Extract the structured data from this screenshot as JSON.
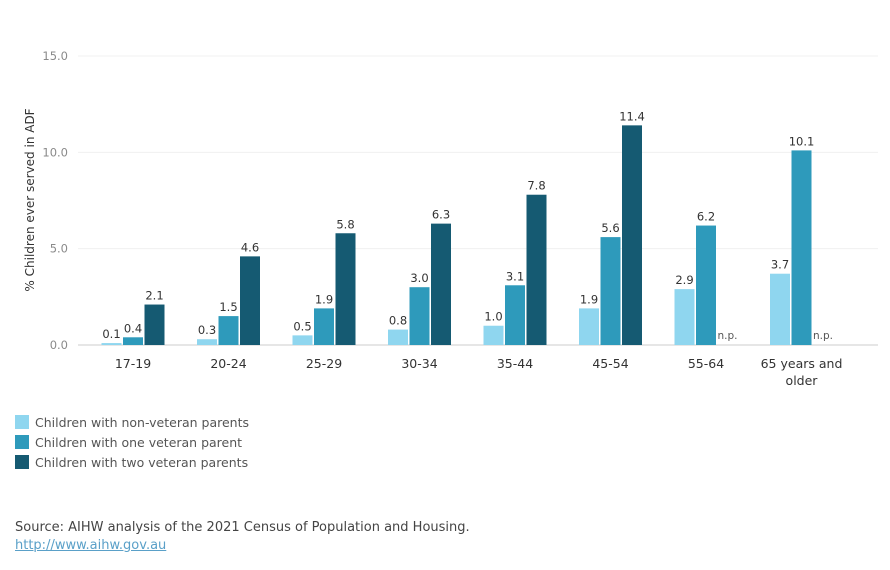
{
  "chart_data": {
    "type": "bar",
    "ylabel": "% Children ever served in ADF",
    "ylim": [
      0,
      15
    ],
    "yticks": [
      "0.0",
      "5.0",
      "10.0",
      "15.0"
    ],
    "categories": [
      "17-19",
      "20-24",
      "25-29",
      "30-34",
      "35-44",
      "45-54",
      "55-64",
      "65 years and older"
    ],
    "category_lines": [
      [
        "17-19"
      ],
      [
        "20-24"
      ],
      [
        "25-29"
      ],
      [
        "30-34"
      ],
      [
        "35-44"
      ],
      [
        "45-54"
      ],
      [
        "55-64"
      ],
      [
        "65 years and",
        "older"
      ]
    ],
    "series": [
      {
        "name": "Children with non-veteran parents",
        "color": "#8fd6ef",
        "values": [
          0.1,
          0.3,
          0.5,
          0.8,
          1.0,
          1.9,
          2.9,
          3.7
        ],
        "labels": [
          "0.1",
          "0.3",
          "0.5",
          "0.8",
          "1.0",
          "1.9",
          "2.9",
          "3.7"
        ]
      },
      {
        "name": "Children with one veteran parent",
        "color": "#2e9abb",
        "values": [
          0.4,
          1.5,
          1.9,
          3.0,
          3.1,
          5.6,
          6.2,
          10.1
        ],
        "labels": [
          "0.4",
          "1.5",
          "1.9",
          "3.0",
          "3.1",
          "5.6",
          "6.2",
          "10.1"
        ]
      },
      {
        "name": "Children with two veteran parents",
        "color": "#155a72",
        "values": [
          2.1,
          4.6,
          5.8,
          6.3,
          7.8,
          11.4,
          null,
          null
        ],
        "labels": [
          "2.1",
          "4.6",
          "5.8",
          "6.3",
          "7.8",
          "11.4",
          "n.p.",
          "n.p."
        ]
      }
    ],
    "grid": true,
    "legend_position": "bottom-left"
  },
  "source": {
    "text": "Source: AIHW analysis of the 2021 Census of Population and Housing.",
    "link": "http://www.aihw.gov.au"
  }
}
